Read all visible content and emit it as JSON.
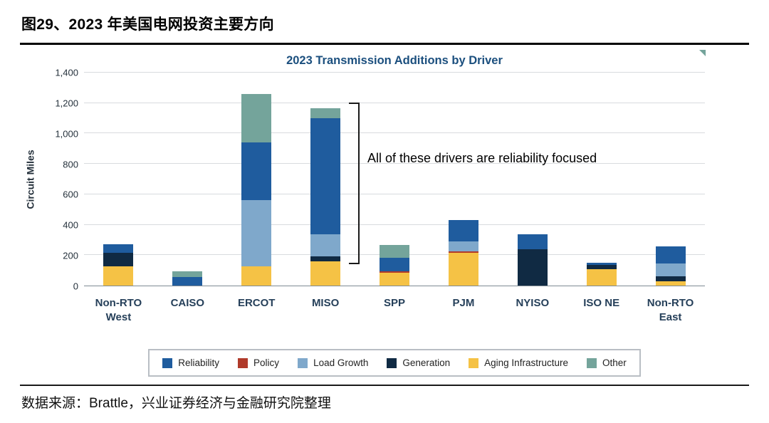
{
  "header": {
    "title": "图29、2023 年美国电网投资主要方向"
  },
  "footer": {
    "source": "数据来源：Brattle，兴业证券经济与金融研究院整理"
  },
  "colors": {
    "chart_title": "#1B4F7E",
    "axis_text": "#24303B",
    "gridline": "#D8DBDE",
    "corner_marker": "#74A49B"
  },
  "chart_data": {
    "type": "bar",
    "stacked": true,
    "title": "2023 Transmission Additions by Driver",
    "xlabel": "",
    "ylabel": "Circuit Miles",
    "ylim": [
      0,
      1400
    ],
    "yticks": [
      0,
      200,
      400,
      600,
      800,
      1000,
      1200,
      1400
    ],
    "grid": true,
    "legend_position": "bottom",
    "categories": [
      "Non-RTO West",
      "CAISO",
      "ERCOT",
      "MISO",
      "SPP",
      "PJM",
      "NYISO",
      "ISO NE",
      "Non-RTO East"
    ],
    "category_labels": [
      "Non-RTO\nWest",
      "CAISO",
      "ERCOT",
      "MISO",
      "SPP",
      "PJM",
      "NYISO",
      "ISO NE",
      "Non-RTO\nEast"
    ],
    "stack_order": [
      "Aging Infrastructure",
      "Generation",
      "Policy",
      "Load Growth",
      "Reliability",
      "Other"
    ],
    "series": [
      {
        "name": "Reliability",
        "color": "#1F5C9E",
        "values": [
          55,
          55,
          380,
          765,
          90,
          140,
          95,
          15,
          115
        ]
      },
      {
        "name": "Policy",
        "color": "#B03A2A",
        "values": [
          0,
          0,
          0,
          0,
          10,
          10,
          0,
          0,
          0
        ]
      },
      {
        "name": "Load Growth",
        "color": "#7FA8CB",
        "values": [
          0,
          0,
          435,
          145,
          0,
          65,
          0,
          0,
          85
        ]
      },
      {
        "name": "Generation",
        "color": "#102A43",
        "values": [
          90,
          0,
          0,
          30,
          0,
          0,
          240,
          25,
          30
        ]
      },
      {
        "name": "Aging Infrastructure",
        "color": "#F5C245",
        "values": [
          125,
          0,
          125,
          160,
          85,
          215,
          0,
          110,
          30
        ]
      },
      {
        "name": "Other",
        "color": "#74A49B",
        "values": [
          0,
          40,
          320,
          65,
          80,
          0,
          0,
          0,
          0
        ]
      }
    ],
    "annotation": "All of these drivers are reliability focused"
  }
}
